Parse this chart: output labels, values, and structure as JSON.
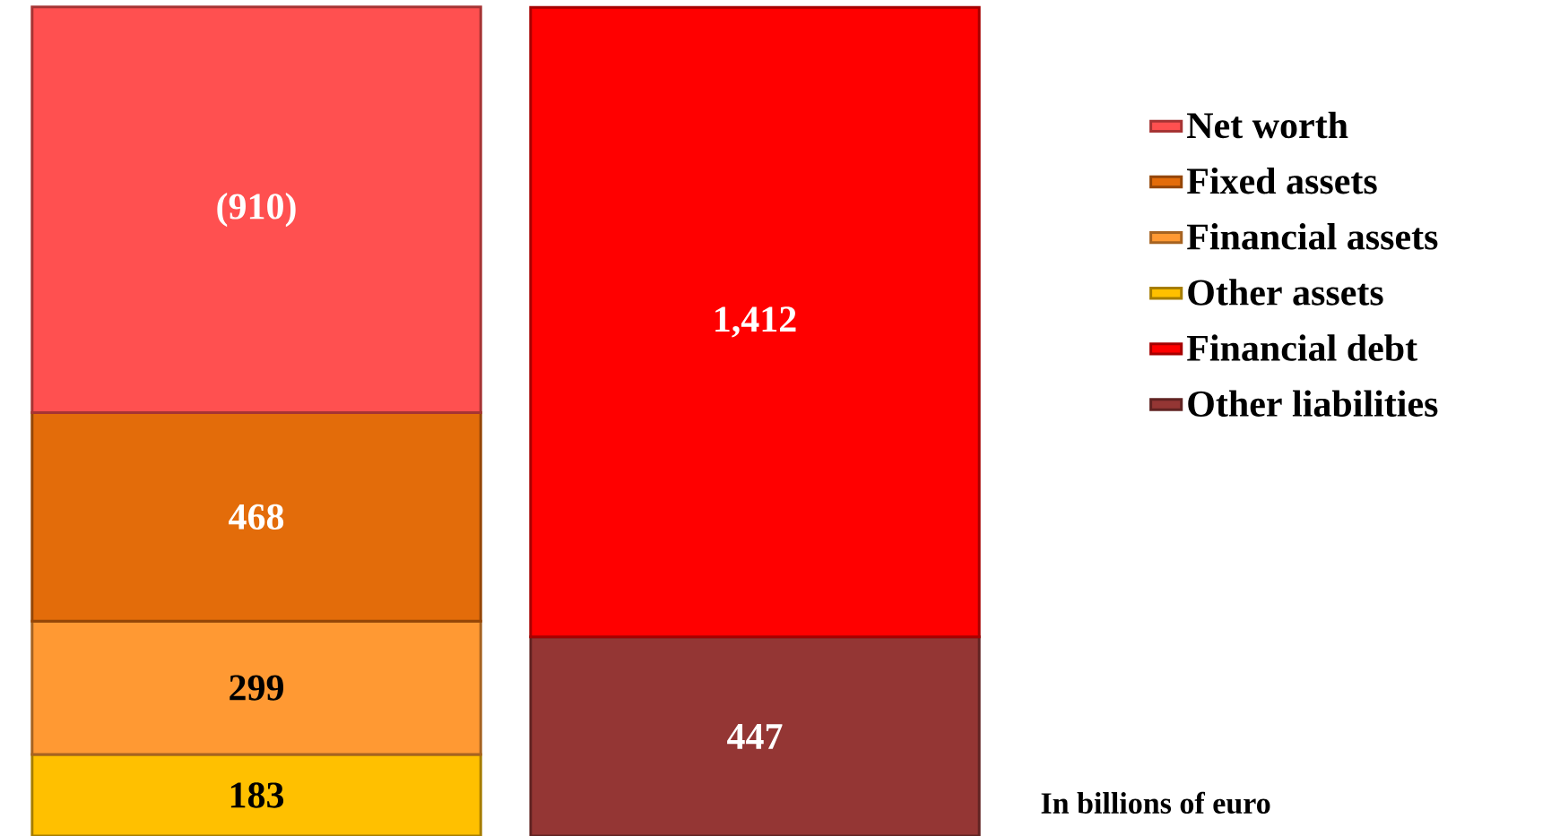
{
  "chart_data": {
    "type": "bar",
    "stacked": true,
    "categories": [
      null,
      null
    ],
    "legend": "right",
    "annotations": [
      "In billions of euro"
    ],
    "series": [
      {
        "name": "Other assets",
        "color": "#ffc000",
        "values": [
          183,
          null
        ],
        "value_labels": [
          "183",
          null
        ]
      },
      {
        "name": "Financial assets",
        "color": "#ff9933",
        "values": [
          299,
          null
        ],
        "value_labels": [
          "299",
          null
        ]
      },
      {
        "name": "Fixed assets",
        "color": "#e36c0a",
        "values": [
          468,
          null
        ],
        "value_labels": [
          "468",
          null
        ]
      },
      {
        "name": "Net worth",
        "color": "#ff5050",
        "values": [
          910,
          null
        ],
        "value_labels": [
          "(910)",
          null
        ]
      },
      {
        "name": "Other liabilities",
        "color": "#943634",
        "values": [
          null,
          447
        ],
        "value_labels": [
          null,
          "447"
        ]
      },
      {
        "name": "Financial debt",
        "color": "#ff0000",
        "values": [
          null,
          1412
        ],
        "value_labels": [
          null,
          "1,412"
        ]
      }
    ]
  }
}
